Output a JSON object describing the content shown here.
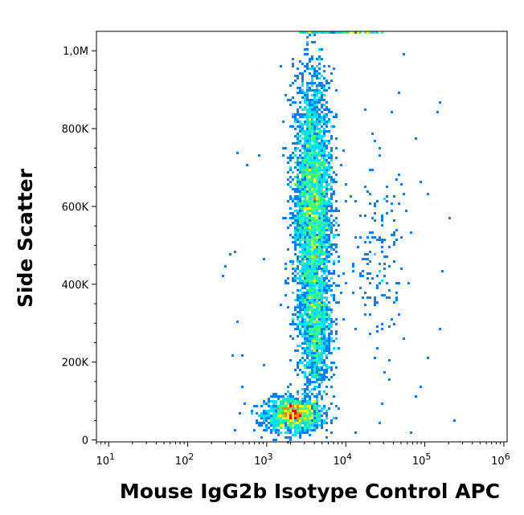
{
  "chart_data": {
    "type": "scatter",
    "style": "density-pseudocolor",
    "xlabel": "Mouse IgG2b Isotype Control APC",
    "ylabel": "Side Scatter",
    "x_scale": "log",
    "xlim": [
      7,
      1100000
    ],
    "ylim": [
      -5000,
      1050000
    ],
    "x_ticks": [
      {
        "value": 10,
        "base": "10",
        "exp": "1"
      },
      {
        "value": 100,
        "base": "10",
        "exp": "2"
      },
      {
        "value": 1000,
        "base": "10",
        "exp": "3"
      },
      {
        "value": 10000,
        "base": "10",
        "exp": "4"
      },
      {
        "value": 100000,
        "base": "10",
        "exp": "5"
      },
      {
        "value": 1000000,
        "base": "10",
        "exp": "6"
      }
    ],
    "y_ticks": [
      {
        "value": 0,
        "label": "0"
      },
      {
        "value": 200000,
        "label": "200K"
      },
      {
        "value": 400000,
        "label": "400K"
      },
      {
        "value": 600000,
        "label": "600K"
      },
      {
        "value": 800000,
        "label": "800K"
      },
      {
        "value": 1000000,
        "label": "1,0M"
      }
    ],
    "grid": false,
    "legend": "none",
    "color_scale": [
      "#0000ff",
      "#0080ff",
      "#00e0ff",
      "#40ff80",
      "#ffff00",
      "#ff8000",
      "#ff0000"
    ],
    "populations": [
      {
        "name_hidden": true,
        "x_center": 2200,
        "y_center": 65000,
        "x_spread_decades": 0.18,
        "y_spread": 22000,
        "count": 1400
      },
      {
        "name_hidden": true,
        "x_center": 3800,
        "y_center": 600000,
        "x_spread_decades": 0.12,
        "y_spread": 170000,
        "count": 3500
      },
      {
        "name_hidden": true,
        "x_center": 4200,
        "y_center": 280000,
        "x_spread_decades": 0.1,
        "y_spread": 80000,
        "count": 900
      },
      {
        "name_hidden": true,
        "x_center": 25000,
        "y_center": 480000,
        "x_spread_decades": 0.18,
        "y_spread": 120000,
        "count": 140
      }
    ],
    "saturated_top_edge": {
      "x_range": [
        2500,
        30000
      ],
      "y": 1045000
    }
  }
}
